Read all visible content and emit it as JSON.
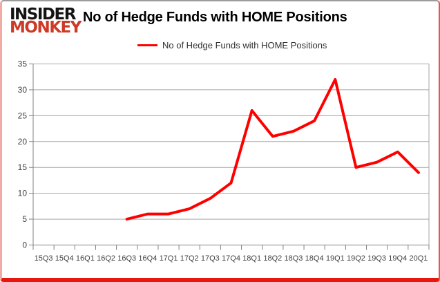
{
  "header": {
    "logo_line1": "INSIDER",
    "logo_line2": "MONKEY",
    "logo_color_primary": "#141414",
    "logo_color_secondary": "#cd3a27",
    "title": "No of Hedge Funds with HOME Positions"
  },
  "legend": {
    "label": "No of Hedge Funds with HOME Positions",
    "line_color": "#ff0000"
  },
  "colors": {
    "series_red": "#ff0000",
    "gridline_gray": "#a6a6a6",
    "axis_gray": "#808080",
    "frame_border_red": "#e8170d",
    "tick_text": "#3f3f3f"
  },
  "chart_data": {
    "type": "line",
    "title": "No of Hedge Funds with HOME Positions",
    "categories": [
      "15Q3",
      "15Q4",
      "16Q1",
      "16Q2",
      "16Q3",
      "16Q4",
      "17Q1",
      "17Q2",
      "17Q3",
      "17Q4",
      "18Q1",
      "18Q2",
      "18Q3",
      "18Q4",
      "19Q1",
      "19Q2",
      "19Q3",
      "19Q4",
      "20Q1"
    ],
    "series": [
      {
        "name": "No of Hedge Funds with HOME Positions",
        "color": "#ff0000",
        "values": [
          null,
          null,
          null,
          null,
          5,
          6,
          6,
          7,
          9,
          12,
          26,
          21,
          22,
          24,
          32,
          15,
          16,
          18,
          14
        ]
      }
    ],
    "xlabel": "",
    "ylabel": "",
    "ylim": [
      0,
      35
    ],
    "yticks": [
      0,
      5,
      10,
      15,
      20,
      25,
      30,
      35
    ],
    "grid": true,
    "legend_position": "top"
  }
}
